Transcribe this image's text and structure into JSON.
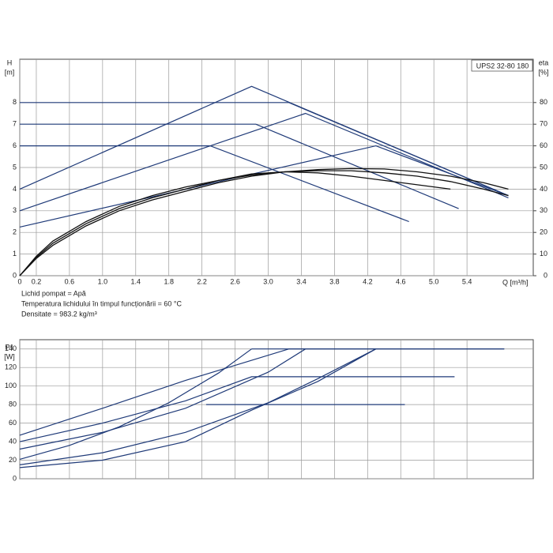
{
  "chart_data": [
    {
      "type": "line",
      "title": "UPS2 32-80 180",
      "ylabel": [
        "H",
        "[m]"
      ],
      "y2label": [
        "eta",
        "[%]"
      ],
      "xlabel": "Q [m³/h]",
      "annotations": [
        "Lichid pompat = Apă",
        "Temperatura lichidului în timpul funcționării = 60 °C",
        "Densitate = 983.2 kg/m³"
      ],
      "xlim": [
        0,
        6.2
      ],
      "xticks": [
        0,
        0.2,
        0.6,
        {
          "value": 1,
          "label": "1.0"
        },
        1.4,
        1.8,
        2.2,
        2.6,
        {
          "value": 3,
          "label": "3.0"
        },
        3.4,
        3.8,
        4.2,
        4.6,
        {
          "value": 5,
          "label": "5.0"
        },
        5.4
      ],
      "ylim": [
        0,
        10
      ],
      "yticks": [
        0,
        1,
        2,
        3,
        4,
        5,
        6,
        7,
        8
      ],
      "y2lim": [
        0,
        100
      ],
      "y2ticks": [
        0,
        10,
        20,
        30,
        40,
        50,
        60,
        70,
        80
      ],
      "grid": true,
      "series": [
        {
          "color": "#1f3a78",
          "x": [
            0,
            3.25,
            5.9
          ],
          "values": [
            8,
            8,
            3.7
          ]
        },
        {
          "color": "#1f3a78",
          "x": [
            0,
            2.85,
            5.3
          ],
          "values": [
            7,
            7,
            3.1
          ]
        },
        {
          "color": "#1f3a78",
          "x": [
            0,
            2.3,
            4.7
          ],
          "values": [
            6,
            6,
            2.5
          ]
        },
        {
          "color": "#1f3a78",
          "x": [
            0,
            2.8,
            5.9
          ],
          "values": [
            4,
            8.75,
            3.7
          ]
        },
        {
          "color": "#1f3a78",
          "x": [
            0,
            3.45,
            5.9
          ],
          "values": [
            3,
            7.5,
            3.6
          ]
        },
        {
          "color": "#1f3a78",
          "x": [
            0,
            4.3,
            5.9
          ],
          "values": [
            2.25,
            6,
            3.7
          ]
        },
        {
          "color": "#111111",
          "axis": "y2",
          "x": [
            0,
            0.2,
            0.4,
            0.8,
            1.2,
            1.6,
            2.0,
            2.4,
            2.8,
            3.2,
            3.6,
            4.0,
            4.4,
            4.8,
            5.2,
            5.6,
            5.9
          ],
          "values": [
            0,
            8,
            14,
            23,
            30,
            35,
            39,
            43,
            46,
            48,
            49,
            49.5,
            49.3,
            48,
            46,
            43,
            40
          ]
        },
        {
          "color": "#111111",
          "axis": "y2",
          "x": [
            0,
            0.2,
            0.4,
            0.8,
            1.2,
            1.6,
            2.0,
            2.4,
            2.8,
            3.2,
            3.6,
            4.0,
            4.4,
            4.8,
            5.2
          ],
          "values": [
            0,
            9,
            16,
            25,
            32,
            37,
            41,
            44,
            47,
            48,
            47.5,
            46,
            44,
            42,
            40
          ]
        },
        {
          "color": "#111111",
          "axis": "y2",
          "x": [
            0,
            0.2,
            0.4,
            0.8,
            1.2,
            1.6,
            2.0,
            2.4,
            2.8,
            3.2,
            3.6,
            4.0,
            4.4,
            4.8,
            5.2,
            5.6,
            5.9
          ],
          "values": [
            0,
            8.5,
            15,
            24,
            31,
            36,
            40,
            44,
            46.5,
            48,
            48.5,
            48.5,
            47.5,
            46,
            43.5,
            40,
            37
          ]
        }
      ]
    },
    {
      "type": "line",
      "ylabel": [
        "P1",
        "[W]"
      ],
      "xlim": [
        0,
        6.2
      ],
      "ylim": [
        0,
        150
      ],
      "yticks": [
        0,
        20,
        40,
        60,
        80,
        100,
        120,
        140
      ],
      "grid": true,
      "series": [
        {
          "color": "#1f3a78",
          "x": [
            0,
            1,
            2,
            3.25,
            5.85
          ],
          "values": [
            47,
            76,
            106,
            140,
            140
          ]
        },
        {
          "color": "#1f3a78",
          "x": [
            0,
            1,
            2,
            2.8,
            5.25
          ],
          "values": [
            40,
            60,
            84,
            110,
            110
          ]
        },
        {
          "color": "#1f3a78",
          "x": [
            0,
            1,
            2,
            3,
            3.45
          ],
          "values": [
            32,
            50,
            76,
            115,
            140
          ]
        },
        {
          "color": "#1f3a78",
          "x": [
            0,
            0.6,
            1.2,
            1.8,
            2.4,
            2.8
          ],
          "values": [
            21,
            36,
            56,
            82,
            114,
            140
          ]
        },
        {
          "color": "#1f3a78",
          "x": [
            0,
            1,
            2,
            3,
            3.6,
            4.3
          ],
          "values": [
            15,
            28,
            50,
            82,
            108,
            140
          ]
        },
        {
          "color": "#1f3a78",
          "x": [
            0,
            1,
            2,
            2.8,
            3.6,
            4.3
          ],
          "values": [
            12,
            20,
            40,
            74,
            105,
            140
          ]
        },
        {
          "color": "#1f3a78",
          "x": [
            2.25,
            4.65
          ],
          "values": [
            80,
            80
          ]
        },
        {
          "color": "#1f3a78",
          "x": [
            2.8,
            5.85
          ],
          "values": [
            140,
            140
          ]
        }
      ]
    }
  ]
}
